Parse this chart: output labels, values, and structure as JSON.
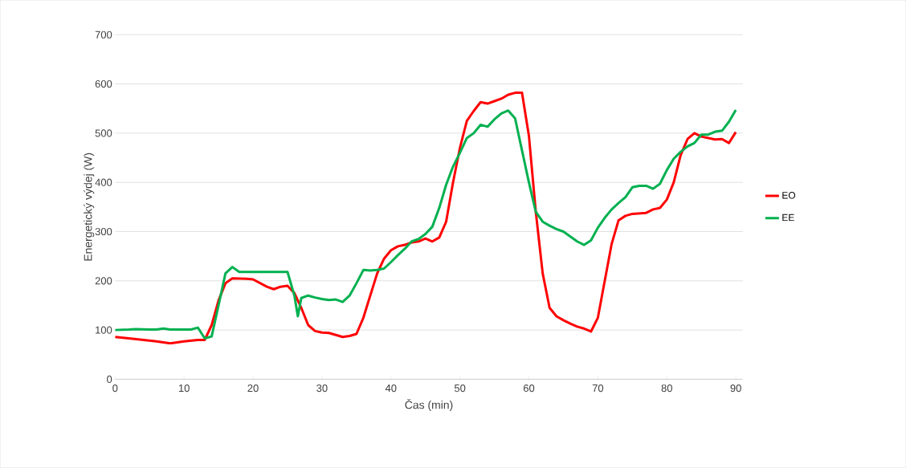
{
  "chart_data": {
    "type": "line",
    "xlabel": "Čas (min)",
    "ylabel": "Energetický výdej (W)",
    "xlim": [
      0,
      91
    ],
    "xticks": [
      0,
      10,
      20,
      30,
      40,
      50,
      60,
      70,
      80,
      90
    ],
    "ylim": [
      0,
      700
    ],
    "yticks": [
      0,
      100,
      200,
      300,
      400,
      500,
      600,
      700
    ],
    "grid": "y",
    "legend": "right",
    "marker": "none",
    "line_style": "solid",
    "series": [
      {
        "name": "EO",
        "color": "#ff0000",
        "x": [
          0,
          2,
          4,
          6,
          8,
          10,
          12,
          13,
          14,
          15,
          16,
          17,
          19,
          20,
          22,
          23,
          24,
          25,
          26,
          27,
          28,
          29,
          30,
          31,
          32,
          33,
          34,
          35,
          36,
          37,
          38,
          39,
          40,
          41,
          42,
          43,
          44,
          45,
          46,
          47,
          48,
          49,
          50,
          51,
          52,
          53,
          54,
          55,
          56,
          57,
          58,
          59,
          60,
          61,
          62,
          63,
          64,
          65,
          66,
          67,
          68,
          69,
          70,
          71,
          72,
          73,
          74,
          75,
          76,
          77,
          78,
          79,
          80,
          81,
          82,
          83,
          84,
          85,
          86,
          87,
          88,
          89,
          90
        ],
        "values": [
          86,
          83,
          80,
          77,
          73,
          77,
          80,
          80,
          110,
          160,
          195,
          205,
          204,
          203,
          188,
          183,
          188,
          190,
          175,
          145,
          110,
          98,
          95,
          94,
          90,
          86,
          88,
          92,
          125,
          170,
          215,
          245,
          262,
          270,
          273,
          278,
          280,
          286,
          280,
          288,
          320,
          400,
          470,
          525,
          545,
          563,
          560,
          565,
          570,
          578,
          582,
          582,
          495,
          340,
          215,
          145,
          128,
          120,
          113,
          107,
          103,
          97,
          125,
          200,
          275,
          323,
          332,
          336,
          337,
          338,
          345,
          348,
          365,
          400,
          455,
          488,
          500,
          493,
          490,
          487,
          488,
          480,
          502
        ]
      },
      {
        "name": "EE",
        "color": "#00b050",
        "x": [
          0,
          2,
          3,
          5,
          6,
          7,
          8,
          10,
          11,
          12,
          13,
          14,
          15,
          16,
          17,
          18,
          20,
          24,
          25,
          26,
          26.5,
          27,
          28,
          29,
          30,
          31,
          32,
          33,
          34,
          35,
          36,
          37,
          38,
          39,
          40,
          41,
          42,
          43,
          44,
          45,
          46,
          47,
          48,
          49,
          50,
          51,
          52,
          53,
          54,
          55,
          56,
          57,
          58,
          59,
          60,
          61,
          62,
          63,
          64,
          65,
          66,
          67,
          68,
          69,
          70,
          71,
          72,
          73,
          74,
          75,
          76,
          77,
          78,
          79,
          80,
          81,
          82,
          83,
          84,
          85,
          86,
          87,
          88,
          89,
          90
        ],
        "values": [
          100,
          101,
          102,
          101,
          101,
          103,
          101,
          101,
          101,
          105,
          83,
          87,
          150,
          215,
          228,
          218,
          218,
          218,
          218,
          170,
          128,
          165,
          170,
          166,
          163,
          161,
          162,
          157,
          170,
          195,
          222,
          221,
          222,
          225,
          238,
          252,
          265,
          280,
          285,
          295,
          310,
          348,
          395,
          432,
          460,
          490,
          500,
          517,
          513,
          528,
          540,
          546,
          530,
          465,
          400,
          340,
          320,
          312,
          305,
          300,
          290,
          280,
          273,
          282,
          308,
          328,
          345,
          358,
          370,
          390,
          393,
          393,
          387,
          397,
          425,
          448,
          462,
          473,
          480,
          497,
          497,
          503,
          505,
          523,
          547
        ]
      }
    ]
  }
}
